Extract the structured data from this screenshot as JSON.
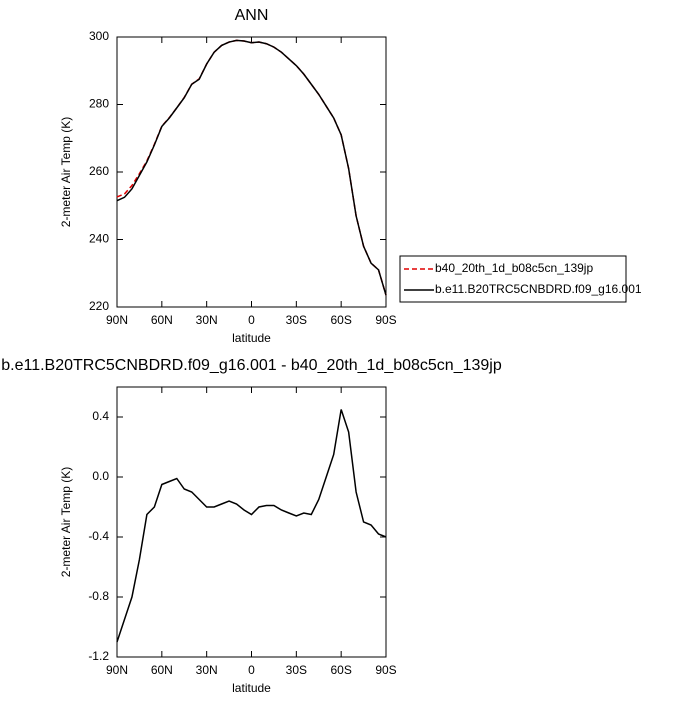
{
  "chart_data": [
    {
      "type": "line",
      "title": "ANN",
      "xlabel": "latitude",
      "ylabel": "2-meter Air Temp (K)",
      "x": [
        90,
        85,
        80,
        75,
        70,
        65,
        60,
        55,
        50,
        45,
        40,
        35,
        30,
        25,
        20,
        15,
        10,
        5,
        0,
        -5,
        -10,
        -15,
        -20,
        -25,
        -30,
        -35,
        -40,
        -45,
        -50,
        -55,
        -60,
        -65,
        -70,
        -75,
        -80,
        -85,
        -90
      ],
      "series": [
        {
          "name": "b40_20th_1d_b08c5cn_139jp",
          "color": "#e00000",
          "line_style": "dashed",
          "values": [
            252.6,
            253.5,
            256,
            259.5,
            263.3,
            268.2,
            273.6,
            276.1,
            279,
            282.1,
            286,
            287.6,
            292,
            295.5,
            297.5,
            298.5,
            299,
            298.8,
            298.3,
            298.5,
            298,
            297,
            295.5,
            293.5,
            291.5,
            289,
            286,
            283,
            279.5,
            276,
            271,
            261,
            247,
            238,
            233,
            231,
            223.5
          ]
        },
        {
          "name": "b.e11.B20TRC5CNBDRD.f09_g16.001",
          "color": "#000000",
          "line_style": "solid",
          "values": [
            251.5,
            252.5,
            255,
            259,
            263,
            268,
            273.5,
            276,
            279,
            282,
            286,
            287.5,
            292,
            295.5,
            297.5,
            298.5,
            299,
            298.8,
            298.3,
            298.5,
            298,
            297,
            295.5,
            293.5,
            291.5,
            289,
            286,
            283,
            279.5,
            276,
            271,
            261,
            247,
            238,
            233,
            231,
            223.5
          ]
        }
      ],
      "xlim": [
        90,
        -90
      ],
      "xticks": [
        {
          "value": 90,
          "label": "90N"
        },
        {
          "value": 60,
          "label": "60N"
        },
        {
          "value": 30,
          "label": "30N"
        },
        0,
        {
          "value": -30,
          "label": "30S"
        },
        {
          "value": -60,
          "label": "60S"
        },
        {
          "value": -90,
          "label": "90S"
        }
      ],
      "ylim": [
        220,
        300
      ],
      "yticks": [
        220,
        240,
        260,
        280,
        300
      ]
    },
    {
      "type": "line",
      "title": "b.e11.B20TRC5CNBDRD.f09_g16.001 - b40_20th_1d_b08c5cn_139jp",
      "xlabel": "latitude",
      "ylabel": "2-meter Air Temp (K)",
      "x": [
        90,
        85,
        80,
        75,
        70,
        65,
        60,
        55,
        50,
        45,
        40,
        35,
        30,
        25,
        20,
        15,
        10,
        5,
        0,
        -5,
        -10,
        -15,
        -20,
        -25,
        -30,
        -35,
        -40,
        -45,
        -50,
        -55,
        -60,
        -65,
        -70,
        -75,
        -80,
        -85,
        -90
      ],
      "series": [
        {
          "color": "#000000",
          "line_style": "solid",
          "values": [
            -1.1,
            -0.95,
            -0.8,
            -0.55,
            -0.25,
            -0.2,
            -0.05,
            -0.03,
            -0.01,
            -0.08,
            -0.1,
            -0.15,
            -0.2,
            -0.2,
            -0.18,
            -0.16,
            -0.18,
            -0.22,
            -0.25,
            -0.2,
            -0.19,
            -0.19,
            -0.22,
            -0.24,
            -0.26,
            -0.24,
            -0.25,
            -0.15,
            0.0,
            0.15,
            0.45,
            0.3,
            -0.1,
            -0.3,
            -0.32,
            -0.38,
            -0.4
          ]
        }
      ],
      "xlim": [
        90,
        -90
      ],
      "xticks": [
        {
          "value": 90,
          "label": "90N"
        },
        {
          "value": 60,
          "label": "60N"
        },
        {
          "value": 30,
          "label": "30N"
        },
        0,
        {
          "value": -30,
          "label": "30S"
        },
        {
          "value": -60,
          "label": "60S"
        },
        {
          "value": -90,
          "label": "90S"
        }
      ],
      "ylim": [
        -1.2,
        0.6
      ],
      "yticks": [
        -1.2,
        -0.8,
        -0.4,
        {
          "value": 0,
          "label": "0.0"
        },
        0.4
      ]
    }
  ]
}
